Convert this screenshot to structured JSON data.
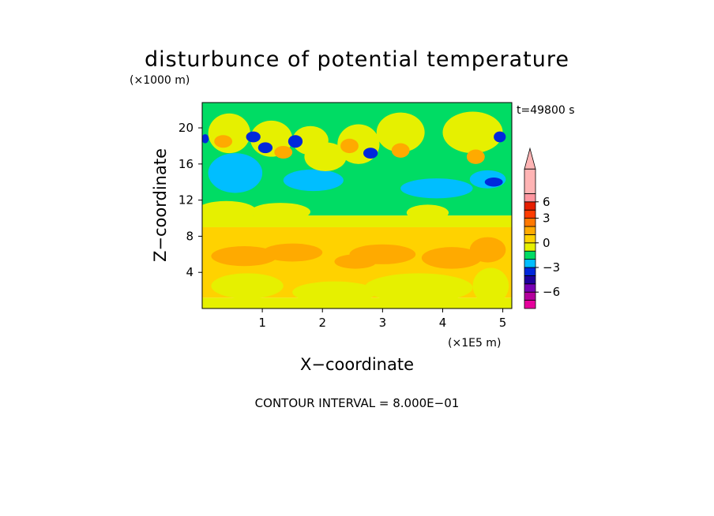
{
  "chart_data": {
    "type": "heatmap",
    "title": "disturbunce of potential temperature",
    "time_label": "t=49800 s",
    "xlabel": "X−coordinate",
    "ylabel": "Z−coordinate",
    "x_unit": "(×1E5 m)",
    "y_unit": "(×1000 m)",
    "xlim": [
      0,
      5.15
    ],
    "ylim": [
      0,
      22.8
    ],
    "xticks": [
      {
        "v": 1,
        "label": "1"
      },
      {
        "v": 2,
        "label": "2"
      },
      {
        "v": 3,
        "label": "3"
      },
      {
        "v": 4,
        "label": "4"
      },
      {
        "v": 5,
        "label": "5"
      }
    ],
    "yticks": [
      {
        "v": 4,
        "label": "4"
      },
      {
        "v": 8,
        "label": "8"
      },
      {
        "v": 12,
        "label": "12"
      },
      {
        "v": 16,
        "label": "16"
      },
      {
        "v": 20,
        "label": "20"
      }
    ],
    "contour_interval": "CONTOUR INTERVAL = 8.000E−01",
    "colorbar": {
      "colors": [
        "#e6009c",
        "#b4009c",
        "#7800b4",
        "#1e009c",
        "#0028dc",
        "#00beff",
        "#00dc64",
        "#e6f000",
        "#ffd200",
        "#ffaa00",
        "#ff7800",
        "#ff3c00",
        "#e61e00",
        "#ff96a0",
        "#ffb4b4"
      ],
      "labels": [
        {
          "after": 2,
          "text": "−6"
        },
        {
          "after": 5,
          "text": "−3"
        },
        {
          "after": 8,
          "text": "0"
        },
        {
          "after": 11,
          "text": "3"
        },
        {
          "after": 13,
          "text": "6"
        }
      ]
    },
    "field_bands": [
      {
        "z0": 0.0,
        "z1": 1.2,
        "level": 7
      },
      {
        "z0": 1.2,
        "z1": 9.0,
        "level": 8
      },
      {
        "z0": 9.0,
        "z1": 10.3,
        "level": 7
      },
      {
        "z0": 10.3,
        "z1": 22.8,
        "level": 6
      }
    ],
    "field_blobs": [
      {
        "x": 0.75,
        "z": 2.5,
        "rx": 0.6,
        "rz": 1.4,
        "level": 7
      },
      {
        "x": 2.2,
        "z": 1.8,
        "rx": 0.7,
        "rz": 1.2,
        "level": 7
      },
      {
        "x": 3.6,
        "z": 2.3,
        "rx": 0.9,
        "rz": 1.6,
        "level": 7
      },
      {
        "x": 4.8,
        "z": 2.5,
        "rx": 0.3,
        "rz": 2.0,
        "level": 7
      },
      {
        "x": 0.7,
        "z": 5.8,
        "rx": 0.55,
        "rz": 1.1,
        "level": 9
      },
      {
        "x": 1.5,
        "z": 6.2,
        "rx": 0.5,
        "rz": 1.0,
        "level": 9
      },
      {
        "x": 3.0,
        "z": 6.0,
        "rx": 0.55,
        "rz": 1.1,
        "level": 9
      },
      {
        "x": 4.15,
        "z": 5.6,
        "rx": 0.5,
        "rz": 1.2,
        "level": 9
      },
      {
        "x": 4.75,
        "z": 6.5,
        "rx": 0.3,
        "rz": 1.4,
        "level": 9
      },
      {
        "x": 2.55,
        "z": 5.2,
        "rx": 0.35,
        "rz": 0.8,
        "level": 9
      },
      {
        "x": 0.4,
        "z": 10.8,
        "rx": 0.5,
        "rz": 1.1,
        "level": 7
      },
      {
        "x": 1.3,
        "z": 10.7,
        "rx": 0.5,
        "rz": 1.0,
        "level": 7
      },
      {
        "x": 3.75,
        "z": 10.6,
        "rx": 0.35,
        "rz": 0.9,
        "level": 7
      },
      {
        "x": 0.55,
        "z": 15.0,
        "rx": 0.45,
        "rz": 2.2,
        "level": 5
      },
      {
        "x": 1.85,
        "z": 14.2,
        "rx": 0.5,
        "rz": 1.2,
        "level": 5
      },
      {
        "x": 3.9,
        "z": 13.3,
        "rx": 0.6,
        "rz": 1.1,
        "level": 5
      },
      {
        "x": 4.75,
        "z": 14.3,
        "rx": 0.3,
        "rz": 1.0,
        "level": 5
      },
      {
        "x": 0.45,
        "z": 19.4,
        "rx": 0.35,
        "rz": 2.2,
        "level": 7
      },
      {
        "x": 1.15,
        "z": 18.8,
        "rx": 0.35,
        "rz": 2.0,
        "level": 7
      },
      {
        "x": 1.8,
        "z": 18.6,
        "rx": 0.3,
        "rz": 1.6,
        "level": 7
      },
      {
        "x": 2.6,
        "z": 18.2,
        "rx": 0.35,
        "rz": 2.2,
        "level": 7
      },
      {
        "x": 3.3,
        "z": 19.5,
        "rx": 0.4,
        "rz": 2.2,
        "level": 7
      },
      {
        "x": 4.5,
        "z": 19.5,
        "rx": 0.5,
        "rz": 2.3,
        "level": 7
      },
      {
        "x": 2.05,
        "z": 16.8,
        "rx": 0.35,
        "rz": 1.6,
        "level": 7
      },
      {
        "x": 0.35,
        "z": 18.5,
        "rx": 0.15,
        "rz": 0.7,
        "level": 9
      },
      {
        "x": 1.35,
        "z": 17.3,
        "rx": 0.15,
        "rz": 0.7,
        "level": 9
      },
      {
        "x": 2.45,
        "z": 18.0,
        "rx": 0.15,
        "rz": 0.8,
        "level": 9
      },
      {
        "x": 3.3,
        "z": 17.5,
        "rx": 0.15,
        "rz": 0.8,
        "level": 9
      },
      {
        "x": 4.55,
        "z": 16.8,
        "rx": 0.15,
        "rz": 0.8,
        "level": 9
      },
      {
        "x": 0.85,
        "z": 19.0,
        "rx": 0.12,
        "rz": 0.6,
        "level": 4
      },
      {
        "x": 1.55,
        "z": 18.5,
        "rx": 0.12,
        "rz": 0.7,
        "level": 4
      },
      {
        "x": 1.05,
        "z": 17.8,
        "rx": 0.12,
        "rz": 0.6,
        "level": 4
      },
      {
        "x": 2.8,
        "z": 17.2,
        "rx": 0.12,
        "rz": 0.6,
        "level": 4
      },
      {
        "x": 0.05,
        "z": 18.8,
        "rx": 0.06,
        "rz": 0.5,
        "level": 4
      },
      {
        "x": 4.95,
        "z": 19.0,
        "rx": 0.1,
        "rz": 0.6,
        "level": 4
      },
      {
        "x": 4.85,
        "z": 14.0,
        "rx": 0.15,
        "rz": 0.5,
        "level": 4
      }
    ]
  }
}
